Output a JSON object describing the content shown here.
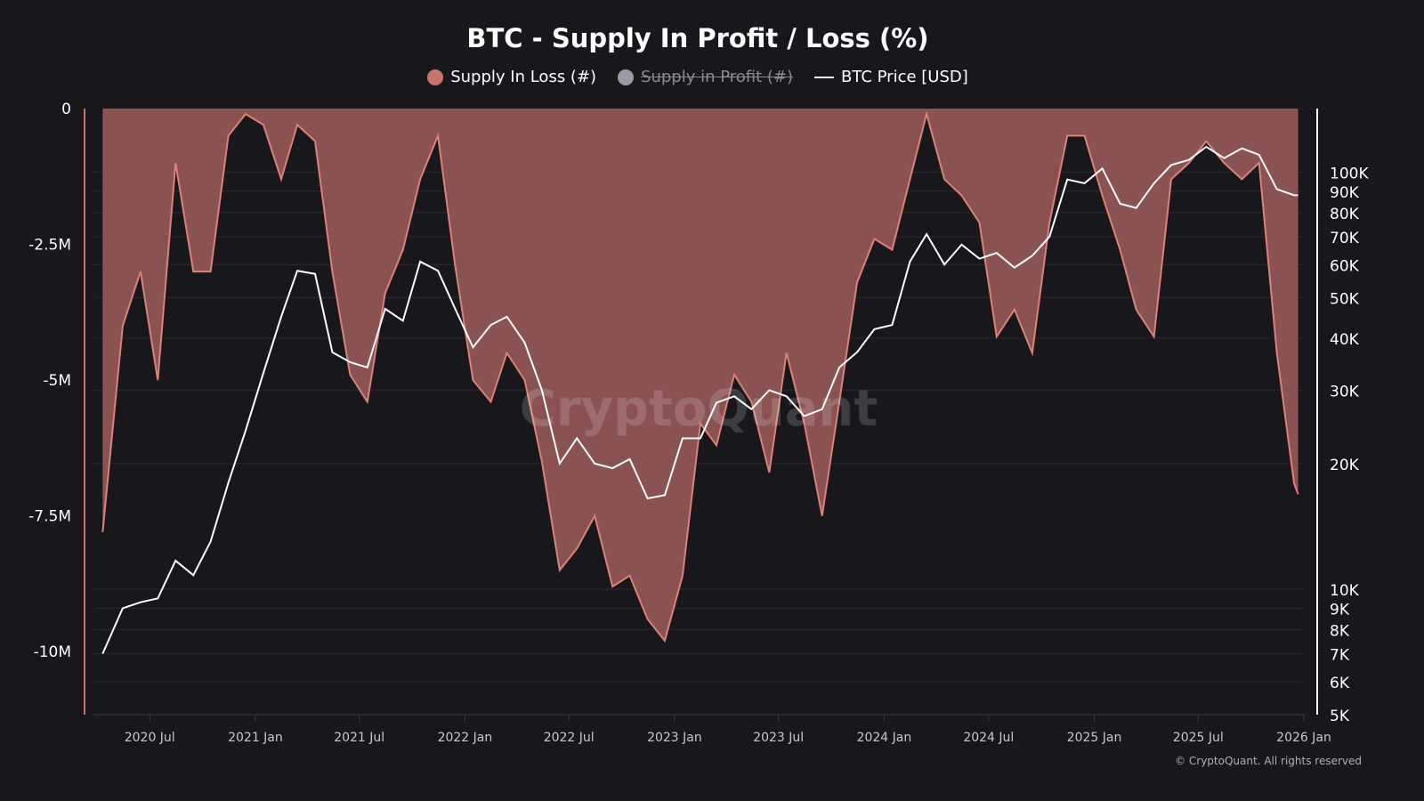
{
  "chart_data": {
    "type": "area+line",
    "title": "BTC - Supply In Profit / Loss (%)",
    "legend": [
      {
        "name": "Supply In Loss (#)",
        "color": "#c9736b",
        "visible": true
      },
      {
        "name": "Supply in Profit (#)",
        "color": "#9a9aa6",
        "visible": false
      },
      {
        "name": "BTC Price [USD]",
        "color": "#ffffff",
        "visible": true
      }
    ],
    "legend_placement": "top-center",
    "left_axis": {
      "ticks": [
        "0",
        "-2.5M",
        "-5M",
        "-7.5M",
        "-10M"
      ],
      "tick_values": [
        0,
        -2500000,
        -5000000,
        -7500000,
        -10000000
      ],
      "range": [
        -11160000,
        0
      ]
    },
    "right_axis": {
      "scale": "log",
      "ticks": [
        "100K",
        "90K",
        "80K",
        "70K",
        "60K",
        "50K",
        "40K",
        "30K",
        "20K",
        "10K",
        "9K",
        "8K",
        "7K",
        "6K",
        "5K"
      ],
      "tick_values": [
        100000,
        90000,
        80000,
        70000,
        60000,
        50000,
        40000,
        30000,
        20000,
        10000,
        9000,
        8000,
        7000,
        6000,
        5000
      ],
      "range": [
        5000,
        142000
      ]
    },
    "x_axis": {
      "ticks": [
        "2020 Jul",
        "2021 Jan",
        "2021 Jul",
        "2022 Jan",
        "2022 Jul",
        "2023 Jan",
        "2023 Jul",
        "2024 Jan",
        "2024 Jul",
        "2025 Jan",
        "2025 Jul",
        "2026 Jan"
      ],
      "tick_dates": [
        "2020-07-01",
        "2021-01-01",
        "2021-07-01",
        "2022-01-01",
        "2022-07-01",
        "2023-01-01",
        "2023-07-01",
        "2024-01-01",
        "2024-07-01",
        "2025-01-01",
        "2025-07-01",
        "2026-01-01"
      ],
      "range": [
        "2020-03-25",
        "2026-01-01"
      ]
    },
    "x": [
      "2020-04-10",
      "2020-05-15",
      "2020-06-15",
      "2020-07-15",
      "2020-08-15",
      "2020-09-15",
      "2020-10-15",
      "2020-11-15",
      "2020-12-15",
      "2021-01-15",
      "2021-02-15",
      "2021-03-15",
      "2021-04-15",
      "2021-05-15",
      "2021-06-15",
      "2021-07-15",
      "2021-08-15",
      "2021-09-15",
      "2021-10-15",
      "2021-11-15",
      "2021-12-15",
      "2022-01-15",
      "2022-02-15",
      "2022-03-15",
      "2022-04-15",
      "2022-05-15",
      "2022-06-15",
      "2022-07-15",
      "2022-08-15",
      "2022-09-15",
      "2022-10-15",
      "2022-11-15",
      "2022-12-15",
      "2023-01-15",
      "2023-02-15",
      "2023-03-15",
      "2023-04-15",
      "2023-05-15",
      "2023-06-15",
      "2023-07-15",
      "2023-08-15",
      "2023-09-15",
      "2023-10-15",
      "2023-11-15",
      "2023-12-15",
      "2024-01-15",
      "2024-02-15",
      "2024-03-15",
      "2024-04-15",
      "2024-05-15",
      "2024-06-15",
      "2024-07-15",
      "2024-08-15",
      "2024-09-15",
      "2024-10-15",
      "2024-11-15",
      "2024-12-15",
      "2025-01-15",
      "2025-02-15",
      "2025-03-15",
      "2025-04-15",
      "2025-05-15",
      "2025-06-15",
      "2025-07-15",
      "2025-08-15",
      "2025-09-15",
      "2025-10-15",
      "2025-11-15",
      "2025-12-15",
      "2025-12-22"
    ],
    "series": [
      {
        "name": "Supply In Loss (#)",
        "axis": "left",
        "type": "area",
        "values": [
          -7800000,
          -4000000,
          -3000000,
          -5000000,
          -1000000,
          -3000000,
          -3000000,
          -500000,
          -100000,
          -300000,
          -1300000,
          -300000,
          -600000,
          -3000000,
          -4900000,
          -5400000,
          -3400000,
          -2600000,
          -1300000,
          -500000,
          -2900000,
          -5000000,
          -5400000,
          -4500000,
          -5000000,
          -6500000,
          -8500000,
          -8100000,
          -7500000,
          -8800000,
          -8600000,
          -9400000,
          -9800000,
          -8600000,
          -5800000,
          -6200000,
          -4900000,
          -5400000,
          -6700000,
          -4500000,
          -5800000,
          -7500000,
          -5400000,
          -3200000,
          -2400000,
          -2600000,
          -1300000,
          -100000,
          -1300000,
          -1600000,
          -2100000,
          -4200000,
          -3700000,
          -4500000,
          -2100000,
          -500000,
          -500000,
          -1600000,
          -2600000,
          -3700000,
          -4200000,
          -1300000,
          -1000000,
          -600000,
          -1000000,
          -1300000,
          -1000000,
          -4500000,
          -6900000,
          -7100000
        ]
      },
      {
        "name": "BTC Price [USD]",
        "axis": "right",
        "type": "line",
        "values": [
          7000,
          9000,
          9300,
          9500,
          11700,
          10800,
          13000,
          18000,
          24000,
          33000,
          45000,
          58000,
          57000,
          37000,
          35000,
          34000,
          47000,
          44000,
          61000,
          58000,
          47000,
          38000,
          43000,
          45000,
          39000,
          30000,
          20000,
          23000,
          20000,
          19500,
          20500,
          16500,
          16800,
          23000,
          23000,
          28000,
          29000,
          27000,
          30000,
          29000,
          26000,
          27000,
          34000,
          37000,
          42000,
          43000,
          61000,
          71000,
          60000,
          67000,
          62000,
          64000,
          59000,
          63000,
          70000,
          96000,
          94000,
          102000,
          84000,
          82000,
          94000,
          104000,
          107000,
          115000,
          108000,
          114000,
          110000,
          91000,
          88000,
          88000
        ]
      }
    ],
    "grid": true
  },
  "watermark": "CryptoQuant",
  "copyright": "© CryptoQuant. All rights reserved"
}
